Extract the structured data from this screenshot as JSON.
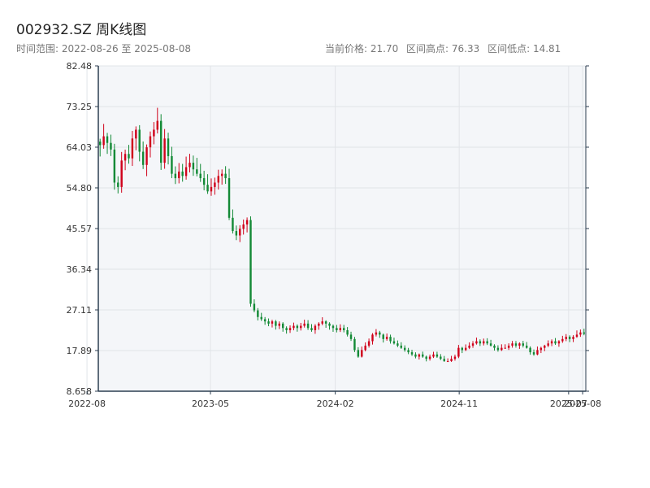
{
  "header": {
    "title": "002932.SZ 周K线图",
    "range_label": "时间范围: 2022-08-26 至 2025-08-08",
    "current_price": "当前价格: 21.70",
    "range_high": "区间高点: 76.33",
    "range_low": "区间低点: 14.81"
  },
  "colors": {
    "up": "#d0021b",
    "down": "#138a36",
    "plot_bg": "#f4f6f9",
    "grid": "#e1e4e8",
    "axis": "#2c3e50"
  },
  "chart_data": {
    "type": "candlestick",
    "title": "002932.SZ 周K线图",
    "ylim": [
      8.658,
      82.48
    ],
    "yticks": [
      "82.48",
      "73.25",
      "64.03",
      "54.80",
      "45.57",
      "36.34",
      "27.11",
      "17.89",
      "8.658"
    ],
    "x_start": "2022-08-26",
    "x_end": "2025-08-08",
    "xticks": [
      {
        "date": "2022-08-01",
        "label": "2022-08"
      },
      {
        "date": "2023-05-01",
        "label": "2023-05"
      },
      {
        "date": "2024-02-01",
        "label": "2024-02"
      },
      {
        "date": "2024-11-01",
        "label": "2024-11"
      },
      {
        "date": "2025-07-01",
        "label": "2025-07"
      },
      {
        "date": "2025-08-01",
        "label": "2025-08"
      }
    ],
    "weekly_closes": [
      64.5,
      66.5,
      65.0,
      63.5,
      56.0,
      55.0,
      61.0,
      62.5,
      61.5,
      66.0,
      68.0,
      63.0,
      60.0,
      64.0,
      66.5,
      68.0,
      70.0,
      60.5,
      66.0,
      62.0,
      58.0,
      57.0,
      58.5,
      57.5,
      59.5,
      60.5,
      59.0,
      58.0,
      57.0,
      55.5,
      54.0,
      55.0,
      56.0,
      57.5,
      58.0,
      57.0,
      48.0,
      45.0,
      44.0,
      45.5,
      46.5,
      47.5,
      28.5,
      27.0,
      25.5,
      25.0,
      24.5,
      24.0,
      24.5,
      23.5,
      24.0,
      23.0,
      22.5,
      23.0,
      23.5,
      23.0,
      23.5,
      24.0,
      23.0,
      22.5,
      23.5,
      24.0,
      24.5,
      24.0,
      23.5,
      23.0,
      22.5,
      23.0,
      22.5,
      21.5,
      20.5,
      18.0,
      16.5,
      18.0,
      19.0,
      20.0,
      21.5,
      22.0,
      21.5,
      20.5,
      21.0,
      20.0,
      19.5,
      19.0,
      18.5,
      18.0,
      17.5,
      17.0,
      16.5,
      17.0,
      16.5,
      16.0,
      16.5,
      17.0,
      16.5,
      16.0,
      15.5,
      15.5,
      16.0,
      16.5,
      18.5,
      18.0,
      18.5,
      19.0,
      19.5,
      20.0,
      19.5,
      20.0,
      19.5,
      19.0,
      18.5,
      18.0,
      18.5,
      18.5,
      19.0,
      19.5,
      19.0,
      19.5,
      19.0,
      18.5,
      17.5,
      17.0,
      18.0,
      18.5,
      19.0,
      19.5,
      20.0,
      19.5,
      20.0,
      20.5,
      21.0,
      20.5,
      21.0,
      21.5,
      22.0,
      21.7
    ]
  }
}
